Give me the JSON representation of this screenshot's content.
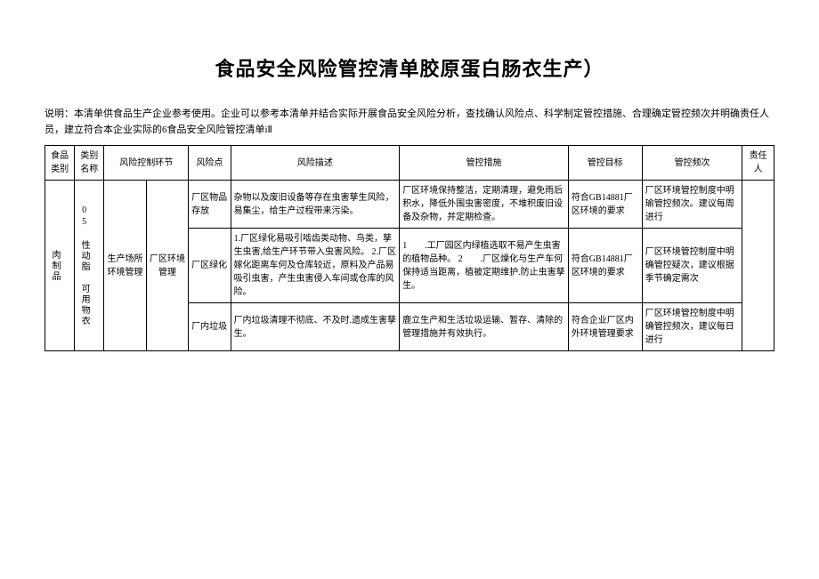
{
  "title": "食品安全风险管控清单胶原蛋白肠衣生产）",
  "description": "说明：本清单供食品生产企业参考使用。企业可以参考本清单并结合实际开展食品安全风险分析，查找确认风险点、科学制定管控措施、合理确定管控频次并明确责任人员，建立符合本企业实际的6食品安全风险管控清单iⅡ",
  "headers": {
    "col1": "食品类别",
    "col2": "类别名称",
    "col3": "风险控制环节",
    "col4": "风险点",
    "col5": "风险描述",
    "col6": "管控措施",
    "col7": "管控目标",
    "col8": "管控频次",
    "col9": "责任人"
  },
  "mergedCells": {
    "foodCategory": "肉制品",
    "categoryName": "05 性动脂 可用物衣",
    "riskControlLink1": "生产场所环境管理",
    "riskControlLink2": "厂区环境管理"
  },
  "rows": [
    {
      "riskPoint": "厂区物品存放",
      "riskDesc": "杂物以及废旧设备等存在虫害孳生风险，易集尘，给生产过程带来污染。",
      "measures": "厂区环境保持整洁，定期清理，避免雨后积水，降低外围虫害密度，不堆积废旧设备及杂物，并定期检查。",
      "target": "符合GB14881厂区环境的要求",
      "freq": "厂区环境管控制度中明瑜管控频次。建议每周进行"
    },
    {
      "riskPoint": "厂区绿化",
      "riskDesc": "1.厂区绿化易吸引啮齿类动物、鸟类，孳生虫害,给生产环节带入虫害风险。\n2.厂区嫁化距离车何及仓库较近，原料及产品易吸引虫害，产生虫害侵入车间或仓库的风险。",
      "measures": "1　　.工厂园区内绿植选取不易产生虫害的植物品种。\n2　　.厂区燥化与生产车何保持适当距离，植被定期维护.防止虫害孳生。",
      "target": "符合GB14881厂区环境的要求",
      "freq": "厂区环境管控制度中明确管控疑次，建议根据季节确定需次"
    },
    {
      "riskPoint": "厂内垃圾",
      "riskDesc": "厂内垃圾清理不彻底、不及时.遗成生害孳生。",
      "measures": "鹿立生产和生活垃圾运输、暂存、清除的管理措施并有效执行。",
      "target": "符合企业厂区内外环境管理要求",
      "freq": "厂区环境管控制度中明确管控频次，建议每日进行"
    }
  ]
}
